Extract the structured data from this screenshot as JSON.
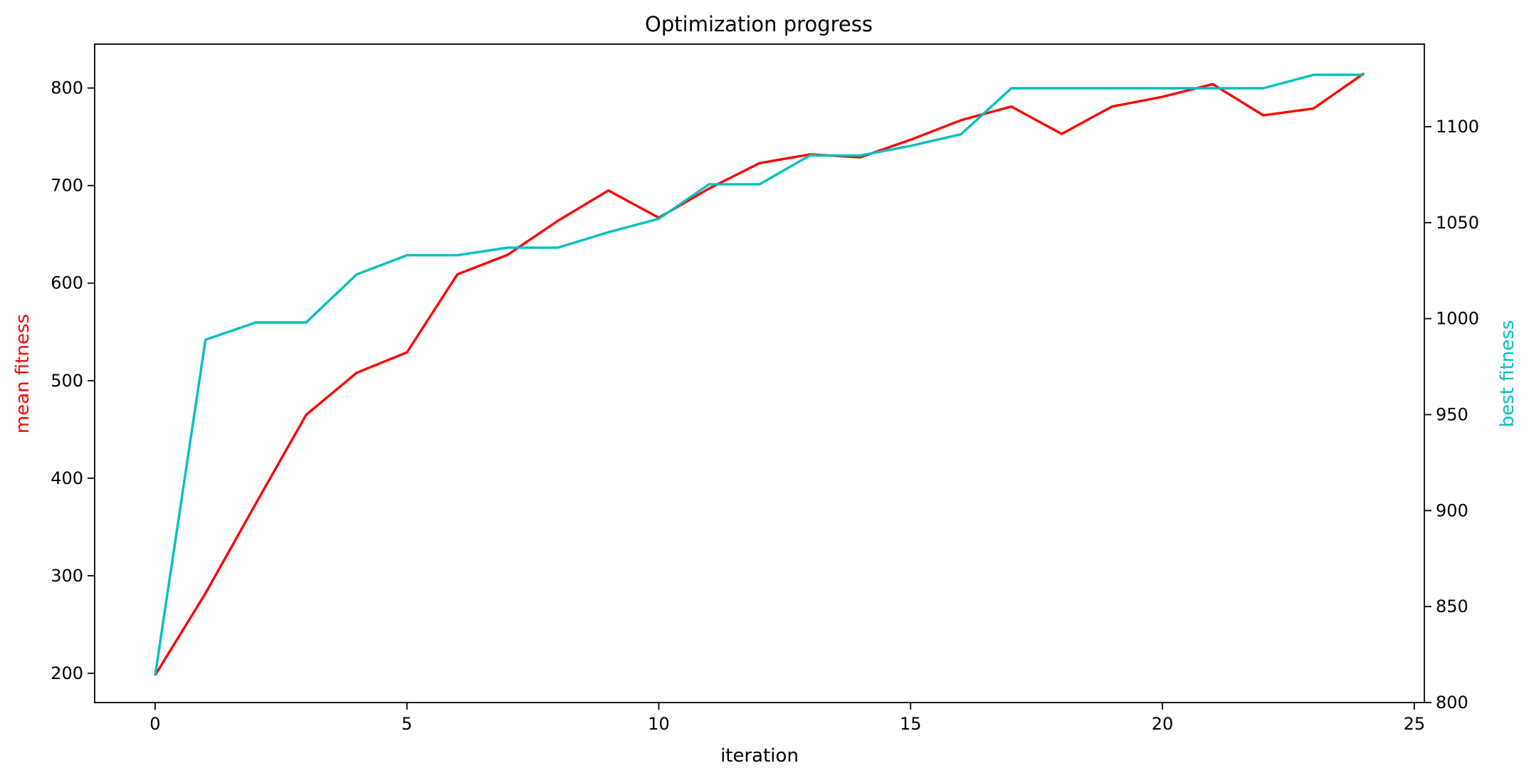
{
  "chart_data": {
    "type": "line",
    "title": "Optimization progress",
    "xlabel": "iteration",
    "xlim": [
      -1.2,
      25.2
    ],
    "xticks": [
      0,
      5,
      10,
      15,
      20,
      25
    ],
    "x": [
      0,
      1,
      2,
      3,
      4,
      5,
      6,
      7,
      8,
      9,
      10,
      11,
      12,
      13,
      14,
      15,
      16,
      17,
      18,
      19,
      20,
      21,
      22,
      23,
      24
    ],
    "grid": false,
    "legend": "none",
    "axes": {
      "left": {
        "label": "mean fitness",
        "color": "#ff0000",
        "ylim": [
          170,
          845
        ],
        "ticks": [
          200,
          300,
          400,
          500,
          600,
          700,
          800
        ]
      },
      "right": {
        "label": "best fitness",
        "color": "#00bfbf",
        "ylim": [
          800,
          1143
        ],
        "ticks": [
          800,
          850,
          900,
          950,
          1000,
          1050,
          1100
        ]
      }
    },
    "series": [
      {
        "axis": "left",
        "color": "#ff0000",
        "values": [
          198,
          282,
          374,
          465,
          508,
          529,
          609,
          629,
          664,
          695,
          667,
          697,
          723,
          732,
          729,
          747,
          767,
          781,
          753,
          781,
          791,
          804,
          772,
          779,
          815
        ]
      },
      {
        "axis": "right",
        "color": "#00bfbf",
        "values": [
          814,
          989,
          998,
          998,
          1023,
          1033,
          1033,
          1037,
          1037,
          1045,
          1052,
          1070,
          1070,
          1085,
          1085,
          1090,
          1096,
          1120,
          1120,
          1120,
          1120,
          1120,
          1120,
          1127,
          1127
        ]
      }
    ]
  }
}
